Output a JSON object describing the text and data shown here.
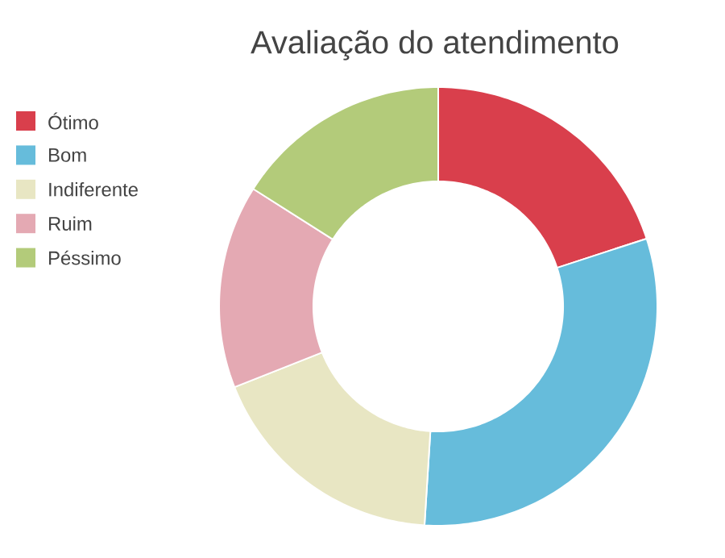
{
  "chart_data": {
    "type": "donut",
    "title": "Avaliação do atendimento",
    "categories": [
      "Ótimo",
      "Bom",
      "Indiferente",
      "Ruim",
      "Péssimo"
    ],
    "values": [
      20,
      31,
      18,
      15,
      16
    ],
    "colors": [
      "#d93f4c",
      "#66bcdb",
      "#e8e6c3",
      "#e4a9b3",
      "#b3cb7a"
    ],
    "legend": "top left"
  }
}
